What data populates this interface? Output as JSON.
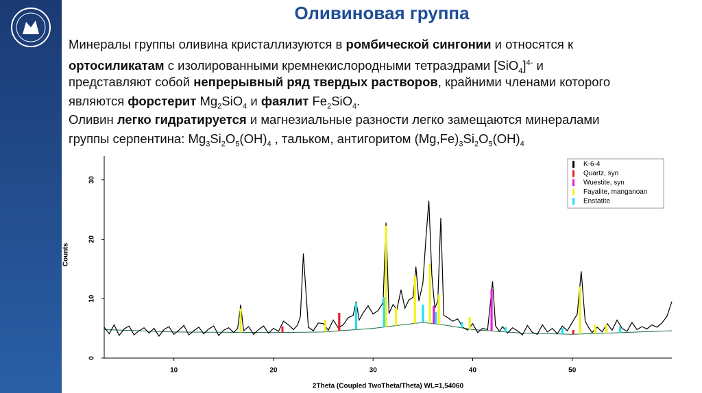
{
  "slide": {
    "title": "Оливиновая группа",
    "lines": [
      [
        {
          "text": "Минералы группы оливина кристаллизуются в "
        },
        {
          "text": "ромбической сингонии",
          "style": "b"
        },
        {
          "text": " и относятся к"
        }
      ],
      [
        {
          "text": "ортосиликатам",
          "style": "b"
        },
        {
          "text": " с изолированными кремнекислородными тетраэдрами [SiO"
        },
        {
          "text": "4",
          "style": "sub"
        },
        {
          "text": "]"
        },
        {
          "text": "4-",
          "style": "sup"
        },
        {
          "text": " и"
        }
      ],
      [
        {
          "text": "представляют собой "
        },
        {
          "text": "непрерывный ряд твердых растворов",
          "style": "b"
        },
        {
          "text": ", крайними членами которого"
        }
      ],
      [
        {
          "text": "являются "
        },
        {
          "text": "форстерит",
          "style": "b"
        },
        {
          "text": " Mg"
        },
        {
          "text": "2",
          "style": "sub"
        },
        {
          "text": "SiO"
        },
        {
          "text": "4",
          "style": "sub"
        },
        {
          "text": " и "
        },
        {
          "text": "фаялит",
          "style": "b"
        },
        {
          "text": " Fe"
        },
        {
          "text": "2",
          "style": "sub"
        },
        {
          "text": "SiO"
        },
        {
          "text": "4",
          "style": "sub"
        },
        {
          "text": "."
        }
      ],
      [
        {
          "text": "Оливин "
        },
        {
          "text": "легко гидратируется",
          "style": "b"
        },
        {
          "text": " и магнезиальные разности легко замещаются минералами"
        }
      ],
      [
        {
          "text": "группы серпентина: Mg"
        },
        {
          "text": "3",
          "style": "sub"
        },
        {
          "text": "Si"
        },
        {
          "text": "2",
          "style": "sub"
        },
        {
          "text": "O"
        },
        {
          "text": "5",
          "style": "sub"
        },
        {
          "text": "(OH)"
        },
        {
          "text": "4",
          "style": "sub"
        },
        {
          "text": " , тальком, антигоритом (Mg,Fe)"
        },
        {
          "text": "3",
          "style": "sub"
        },
        {
          "text": "Si"
        },
        {
          "text": "2",
          "style": "sub"
        },
        {
          "text": "O"
        },
        {
          "text": "5",
          "style": "sub"
        },
        {
          "text": "(OH)"
        },
        {
          "text": "4",
          "style": "sub"
        }
      ]
    ]
  },
  "chart_data": {
    "type": "line",
    "x_label": "2Theta (Coupled TwoTheta/Theta) WL=1,54060",
    "y_label": "Counts",
    "xlim": [
      3,
      60
    ],
    "xticks": [
      10,
      20,
      30,
      40,
      50
    ],
    "ylim": [
      0,
      34
    ],
    "yticks": [
      0,
      10,
      20,
      30
    ],
    "legend_position": "upper right",
    "series": [
      {
        "name": "K-6-4",
        "color": "#000000",
        "type": "line",
        "x": [
          3,
          3.5,
          4,
          4.5,
          5,
          5.5,
          6,
          6.5,
          7,
          7.5,
          8,
          8.5,
          9,
          9.5,
          10,
          10.5,
          11,
          11.5,
          12,
          12.5,
          13,
          13.5,
          14,
          14.5,
          15,
          15.5,
          16,
          16.4,
          16.7,
          17,
          17.5,
          18,
          18.5,
          19,
          19.5,
          20,
          20.5,
          21,
          21.5,
          22,
          22.4,
          22.7,
          23,
          23.5,
          24,
          24.5,
          25,
          25.5,
          26,
          26.5,
          27,
          27.5,
          28,
          28.3,
          28.6,
          29,
          29.5,
          30,
          30.5,
          31,
          31.3,
          31.6,
          32,
          32.4,
          32.8,
          33.2,
          33.6,
          34,
          34.3,
          34.6,
          35,
          35.3,
          35.6,
          35.9,
          36.2,
          36.5,
          36.8,
          37.1,
          37.5,
          38,
          38.5,
          39,
          39.5,
          40,
          40.5,
          41,
          41.5,
          42,
          42.3,
          42.7,
          43,
          43.5,
          44,
          44.5,
          45,
          45.5,
          46,
          46.5,
          47,
          47.5,
          48,
          48.5,
          49,
          49.5,
          50,
          50.5,
          50.9,
          51.3,
          51.7,
          52,
          52.5,
          53,
          53.5,
          54,
          54.5,
          55,
          55.5,
          56,
          56.5,
          57,
          57.5,
          58,
          58.5,
          59,
          59.5,
          60
        ],
        "values": [
          5.2,
          4.1,
          5.6,
          3.8,
          4.9,
          5.4,
          3.9,
          4.6,
          5.1,
          4.2,
          5.0,
          3.7,
          4.8,
          5.3,
          4.0,
          4.7,
          5.5,
          3.9,
          4.6,
          5.2,
          4.1,
          4.9,
          5.4,
          3.8,
          4.7,
          5.1,
          4.3,
          5.0,
          9.0,
          4.6,
          5.3,
          4.0,
          4.8,
          5.4,
          4.2,
          5.0,
          4.5,
          6.2,
          5.6,
          4.8,
          5.5,
          7.0,
          17.6,
          5.2,
          4.6,
          5.9,
          5.8,
          4.7,
          6.4,
          5.1,
          5.6,
          6.8,
          7.2,
          9.5,
          6.4,
          7.6,
          8.8,
          7.4,
          8.0,
          9.3,
          22.8,
          7.5,
          9.0,
          8.2,
          11.5,
          8.4,
          9.8,
          10.2,
          15.4,
          9.6,
          12.6,
          20.0,
          26.5,
          14.0,
          8.4,
          9.6,
          23.6,
          7.2,
          6.8,
          6.2,
          6.6,
          5.2,
          4.7,
          5.8,
          4.3,
          5.0,
          4.8,
          12.9,
          5.4,
          4.5,
          5.3,
          4.2,
          5.1,
          4.6,
          3.9,
          5.5,
          4.3,
          4.0,
          5.6,
          4.4,
          5.0,
          4.1,
          5.4,
          4.6,
          6.0,
          7.4,
          14.6,
          6.2,
          5.0,
          4.3,
          5.2,
          4.4,
          5.8,
          4.7,
          6.4,
          5.0,
          4.5,
          6.0,
          4.8,
          5.3,
          4.9,
          5.6,
          5.2,
          5.9,
          7.0,
          9.5
        ]
      },
      {
        "name": "Quartz, syn",
        "color": "#e8202a",
        "type": "stick",
        "x": [
          20.9,
          26.6,
          50.1
        ],
        "values": [
          1,
          3,
          0.7
        ]
      },
      {
        "name": "Wuestite, syn",
        "color": "#e020d8",
        "type": "stick",
        "x": [
          36.1,
          41.9
        ],
        "values": [
          3,
          7
        ]
      },
      {
        "name": "Fayalite, manganoan",
        "color": "#f2f21a",
        "type": "stick",
        "x": [
          16.7,
          25.2,
          31.3,
          32.3,
          34.2,
          35.7,
          36.6,
          39.7,
          50.8,
          52.3,
          53.4
        ],
        "values": [
          4,
          2,
          17,
          3,
          8,
          10,
          5,
          2,
          8,
          1.5,
          1.5
        ]
      },
      {
        "name": "Enstatite",
        "color": "#22e0f0",
        "type": "stick",
        "x": [
          28.3,
          31.1,
          35.0,
          36.3,
          38.9,
          43.3,
          49.0,
          54.8
        ],
        "values": [
          4.5,
          5,
          3,
          2,
          1,
          0.8,
          1,
          1
        ]
      }
    ],
    "background_curve": {
      "color": "#1a6a40",
      "x": [
        3,
        10,
        20,
        25,
        30,
        33,
        35,
        37,
        40,
        45,
        50,
        55,
        60
      ],
      "values": [
        4.8,
        4.4,
        4.3,
        4.4,
        5.0,
        5.6,
        6.0,
        5.6,
        4.8,
        4.2,
        4.0,
        4.3,
        4.6
      ]
    }
  }
}
